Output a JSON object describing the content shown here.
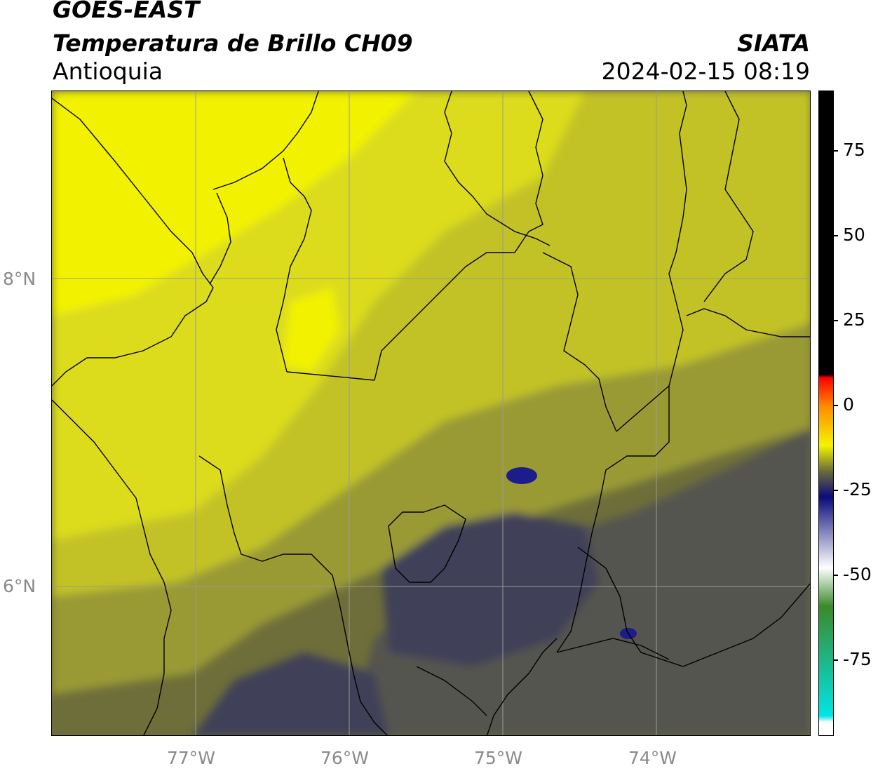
{
  "header": {
    "satellite": "GOES-EAST",
    "product": "Temperatura de Brillo CH09",
    "region": "Antioquia",
    "agency": "SIATA",
    "datetime": "2024-02-15 08:19"
  },
  "axes": {
    "lat_labels": [
      "8°N",
      "6°N"
    ],
    "lon_labels": [
      "77°W",
      "76°W",
      "75°W",
      "74°W"
    ]
  },
  "colorbar": {
    "tick_labels": [
      "75",
      "50",
      "25",
      "0",
      "-25",
      "-50",
      "-75"
    ],
    "colors": {
      "warm_black": "#000000",
      "red": "#ff0000",
      "orange": "#ff8c00",
      "yellow": "#f4f400",
      "olive": "#6b6b3a",
      "navy": "#0b0b7a",
      "white": "#ffffff",
      "green": "#3a8a2a",
      "cyan": "#00e5e5"
    }
  },
  "map": {
    "colors": {
      "bright_yellow": "#f2f200",
      "yellow": "#dcdc1e",
      "yellow_olive": "#c2c226",
      "olive": "#9a9a34",
      "dark_olive": "#6e6e3a",
      "gray": "#555550",
      "slate": "#3f3f58",
      "blue_patch": "#1c1c8a",
      "border": "#000000",
      "grid": "#9a9a9a"
    }
  }
}
